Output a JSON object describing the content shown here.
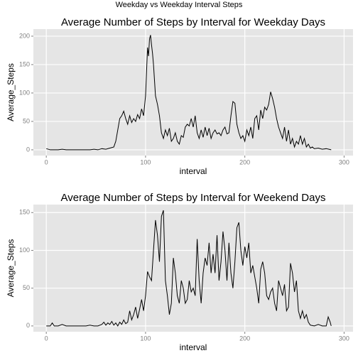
{
  "title": "Weekday vs Weekday Interval Steps",
  "chart_data": [
    {
      "type": "line",
      "title": "Average Number of Steps by Interval for Weekday Days",
      "x_label": "interval",
      "y_label": "Average_Steps",
      "xlim": [
        -13,
        309
      ],
      "xticks": [
        0,
        100,
        200,
        300
      ],
      "ylim": [
        -10.1,
        212.4
      ],
      "yticks": [
        0,
        50,
        100,
        150,
        200
      ],
      "grid": true,
      "color": "#000000",
      "x": [
        0,
        4,
        8,
        12,
        16,
        20,
        24,
        28,
        32,
        36,
        40,
        44,
        48,
        52,
        56,
        60,
        64,
        68,
        70,
        72,
        74,
        76,
        78,
        80,
        82,
        84,
        86,
        88,
        90,
        92,
        94,
        96,
        98,
        100,
        102,
        103,
        104,
        105,
        106,
        107,
        108,
        110,
        112,
        114,
        116,
        118,
        120,
        122,
        124,
        126,
        128,
        130,
        132,
        134,
        136,
        138,
        140,
        142,
        144,
        146,
        148,
        150,
        152,
        154,
        156,
        158,
        160,
        162,
        164,
        166,
        168,
        170,
        172,
        174,
        176,
        178,
        180,
        182,
        184,
        186,
        188,
        190,
        192,
        194,
        196,
        198,
        200,
        202,
        204,
        206,
        208,
        210,
        212,
        214,
        216,
        218,
        220,
        222,
        224,
        226,
        228,
        230,
        232,
        234,
        236,
        238,
        240,
        242,
        244,
        246,
        248,
        250,
        252,
        254,
        256,
        258,
        260,
        262,
        264,
        266,
        268,
        270,
        274,
        278,
        282,
        287
      ],
      "values": [
        2,
        0,
        0,
        0,
        1,
        0,
        0,
        0,
        0,
        0,
        0,
        0,
        1,
        0,
        2,
        1,
        3,
        5,
        15,
        35,
        55,
        60,
        68,
        55,
        45,
        60,
        48,
        55,
        50,
        62,
        55,
        72,
        60,
        95,
        180,
        165,
        195,
        202,
        185,
        170,
        150,
        95,
        80,
        60,
        30,
        20,
        35,
        25,
        38,
        15,
        20,
        30,
        15,
        10,
        25,
        22,
        40,
        45,
        42,
        55,
        40,
        60,
        30,
        20,
        35,
        22,
        40,
        25,
        38,
        20,
        30,
        35,
        28,
        30,
        25,
        35,
        40,
        28,
        30,
        60,
        85,
        82,
        45,
        30,
        20,
        25,
        15,
        35,
        25,
        40,
        20,
        55,
        60,
        35,
        70,
        55,
        75,
        70,
        80,
        102,
        90,
        75,
        55,
        40,
        30,
        20,
        40,
        15,
        35,
        10,
        20,
        5,
        15,
        10,
        25,
        10,
        20,
        5,
        10,
        3,
        5,
        2,
        3,
        1,
        2,
        0
      ]
    },
    {
      "type": "line",
      "title": "Average Number of Steps by Interval for Weekend Days",
      "x_label": "interval",
      "y_label": "Average_Steps",
      "xlim": [
        -13,
        309
      ],
      "xticks": [
        0,
        100,
        200,
        300
      ],
      "ylim": [
        -7.65,
        160.6
      ],
      "yticks": [
        0,
        50,
        100,
        150
      ],
      "grid": true,
      "color": "#000000",
      "x": [
        0,
        4,
        6,
        8,
        12,
        16,
        20,
        24,
        28,
        32,
        36,
        40,
        44,
        48,
        52,
        56,
        58,
        60,
        62,
        64,
        66,
        68,
        70,
        72,
        74,
        76,
        78,
        80,
        82,
        84,
        86,
        88,
        90,
        92,
        94,
        96,
        98,
        100,
        102,
        104,
        106,
        108,
        110,
        112,
        114,
        116,
        118,
        120,
        122,
        124,
        126,
        128,
        130,
        132,
        134,
        136,
        138,
        140,
        142,
        144,
        146,
        148,
        150,
        152,
        154,
        156,
        158,
        160,
        162,
        164,
        166,
        168,
        170,
        172,
        174,
        176,
        178,
        180,
        182,
        184,
        186,
        188,
        190,
        192,
        194,
        196,
        198,
        200,
        202,
        204,
        206,
        208,
        210,
        212,
        214,
        216,
        218,
        220,
        222,
        224,
        226,
        228,
        230,
        232,
        234,
        236,
        238,
        240,
        242,
        244,
        246,
        248,
        250,
        252,
        254,
        256,
        258,
        260,
        262,
        264,
        266,
        270,
        274,
        278,
        282,
        284,
        286,
        287
      ],
      "values": [
        0,
        0,
        4,
        0,
        0,
        2,
        0,
        0,
        0,
        0,
        0,
        0,
        1,
        0,
        0,
        2,
        5,
        1,
        4,
        2,
        6,
        1,
        4,
        0,
        5,
        2,
        8,
        3,
        5,
        20,
        8,
        15,
        25,
        10,
        22,
        35,
        20,
        40,
        72,
        65,
        60,
        100,
        140,
        120,
        85,
        145,
        153,
        60,
        40,
        15,
        30,
        90,
        70,
        40,
        30,
        60,
        50,
        30,
        35,
        60,
        45,
        50,
        40,
        115,
        60,
        30,
        70,
        90,
        80,
        110,
        70,
        95,
        70,
        120,
        60,
        85,
        125,
        100,
        60,
        110,
        70,
        50,
        85,
        130,
        137,
        100,
        80,
        105,
        90,
        110,
        70,
        80,
        65,
        50,
        30,
        75,
        85,
        70,
        40,
        35,
        45,
        50,
        30,
        20,
        60,
        50,
        40,
        55,
        20,
        25,
        83,
        70,
        45,
        60,
        20,
        10,
        20,
        10,
        15,
        5,
        1,
        0,
        2,
        0,
        0,
        12,
        5,
        0
      ]
    }
  ]
}
